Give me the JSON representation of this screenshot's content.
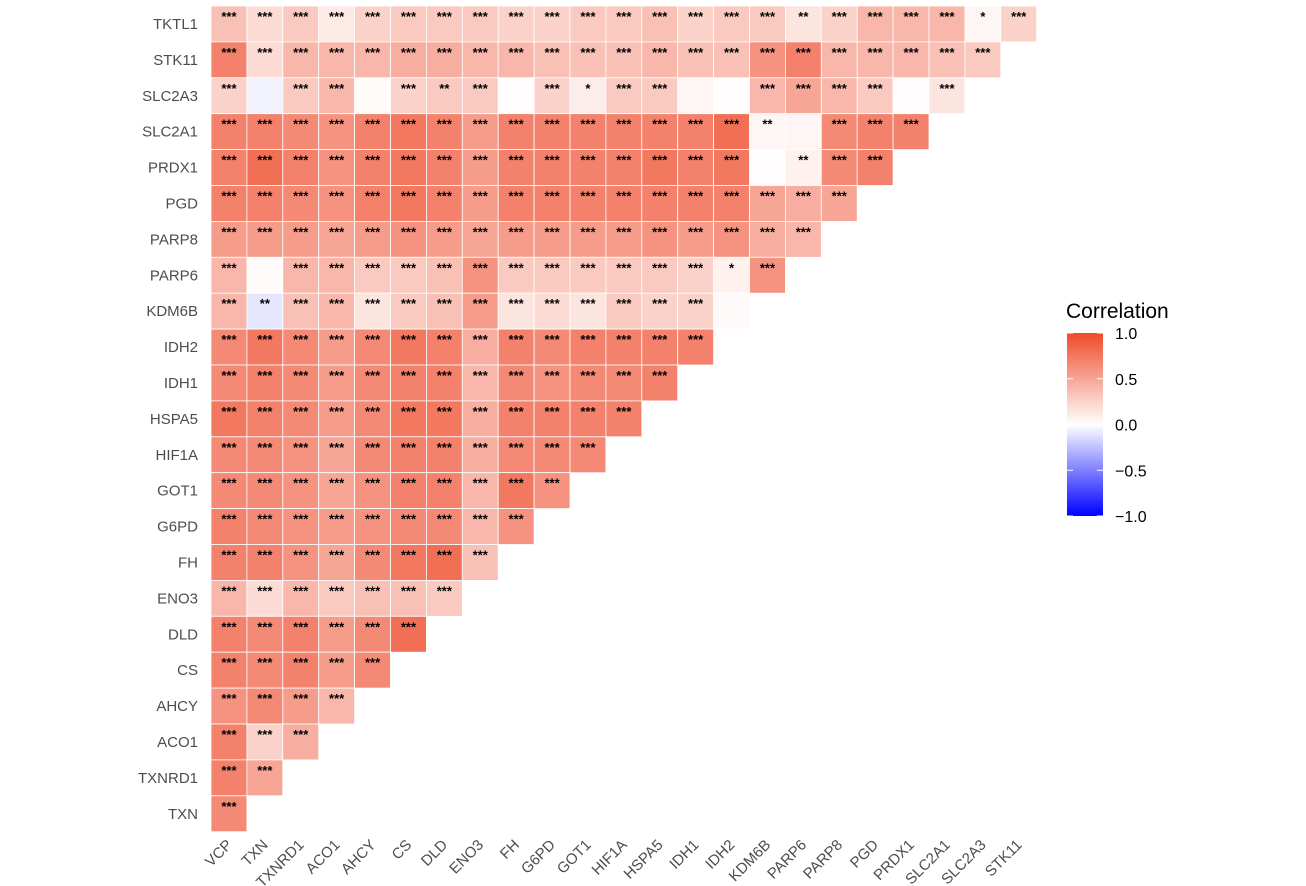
{
  "chart_data": {
    "type": "heatmap",
    "title": "",
    "xlabel": "",
    "ylabel": "",
    "x_categories": [
      "VCP",
      "TXN",
      "TXNRD1",
      "ACO1",
      "AHCY",
      "CS",
      "DLD",
      "ENO3",
      "FH",
      "G6PD",
      "GOT1",
      "HIF1A",
      "HSPA5",
      "IDH1",
      "IDH2",
      "KDM6B",
      "PARP6",
      "PARP8",
      "PGD",
      "PRDX1",
      "SLC2A1",
      "SLC2A3",
      "STK11"
    ],
    "y_categories": [
      "TKTL1",
      "STK11",
      "SLC2A3",
      "SLC2A1",
      "PRDX1",
      "PGD",
      "PARP8",
      "PARP6",
      "KDM6B",
      "IDH2",
      "IDH1",
      "HSPA5",
      "HIF1A",
      "GOT1",
      "G6PD",
      "FH",
      "ENO3",
      "DLD",
      "CS",
      "AHCY",
      "ACO1",
      "TXNRD1",
      "TXN"
    ],
    "values": [
      [
        0.35,
        0.2,
        0.3,
        0.12,
        0.25,
        0.3,
        0.3,
        0.3,
        0.25,
        0.25,
        0.3,
        0.3,
        0.35,
        0.25,
        0.3,
        0.3,
        0.15,
        0.25,
        0.4,
        0.4,
        0.4,
        0.05,
        0.25
      ],
      [
        0.7,
        0.2,
        0.4,
        0.4,
        0.4,
        0.45,
        0.45,
        0.4,
        0.4,
        0.35,
        0.35,
        0.35,
        0.4,
        0.35,
        0.35,
        0.6,
        0.7,
        0.4,
        0.4,
        0.4,
        0.35,
        0.3
      ],
      [
        0.25,
        -0.05,
        0.3,
        0.4,
        0.02,
        0.25,
        0.3,
        0.3,
        0.01,
        0.25,
        0.1,
        0.3,
        0.3,
        0.05,
        0.01,
        0.4,
        0.5,
        0.4,
        0.3,
        0.01,
        0.15
      ],
      [
        0.7,
        0.7,
        0.65,
        0.6,
        0.7,
        0.75,
        0.7,
        0.55,
        0.7,
        0.7,
        0.7,
        0.7,
        0.7,
        0.7,
        0.8,
        0.05,
        0.05,
        0.65,
        0.7,
        0.7
      ],
      [
        0.7,
        0.8,
        0.7,
        0.6,
        0.7,
        0.75,
        0.7,
        0.55,
        0.7,
        0.7,
        0.7,
        0.7,
        0.75,
        0.7,
        0.75,
        0.01,
        0.08,
        0.65,
        0.7
      ],
      [
        0.7,
        0.7,
        0.65,
        0.6,
        0.7,
        0.75,
        0.7,
        0.55,
        0.7,
        0.7,
        0.7,
        0.7,
        0.7,
        0.7,
        0.7,
        0.5,
        0.45,
        0.5
      ],
      [
        0.55,
        0.55,
        0.55,
        0.5,
        0.55,
        0.6,
        0.55,
        0.5,
        0.55,
        0.55,
        0.55,
        0.55,
        0.6,
        0.55,
        0.6,
        0.45,
        0.4
      ],
      [
        0.4,
        0.02,
        0.4,
        0.4,
        0.3,
        0.3,
        0.35,
        0.6,
        0.3,
        0.3,
        0.3,
        0.3,
        0.3,
        0.25,
        0.08,
        0.6
      ],
      [
        0.4,
        -0.1,
        0.35,
        0.4,
        0.15,
        0.3,
        0.35,
        0.55,
        0.15,
        0.2,
        0.15,
        0.3,
        0.25,
        0.25,
        0.03
      ],
      [
        0.65,
        0.75,
        0.65,
        0.55,
        0.65,
        0.75,
        0.7,
        0.45,
        0.7,
        0.65,
        0.7,
        0.7,
        0.7,
        0.7
      ],
      [
        0.65,
        0.7,
        0.65,
        0.55,
        0.65,
        0.7,
        0.7,
        0.4,
        0.65,
        0.6,
        0.65,
        0.65,
        0.7
      ],
      [
        0.75,
        0.7,
        0.65,
        0.55,
        0.65,
        0.75,
        0.75,
        0.45,
        0.7,
        0.7,
        0.7,
        0.7
      ],
      [
        0.65,
        0.65,
        0.6,
        0.5,
        0.65,
        0.7,
        0.7,
        0.45,
        0.65,
        0.65,
        0.65
      ],
      [
        0.65,
        0.65,
        0.6,
        0.5,
        0.6,
        0.7,
        0.7,
        0.4,
        0.75,
        0.6
      ],
      [
        0.7,
        0.65,
        0.6,
        0.55,
        0.6,
        0.65,
        0.65,
        0.4,
        0.6
      ],
      [
        0.7,
        0.7,
        0.6,
        0.5,
        0.65,
        0.75,
        0.8,
        0.35
      ],
      [
        0.4,
        0.2,
        0.4,
        0.3,
        0.35,
        0.35,
        0.3
      ],
      [
        0.7,
        0.65,
        0.7,
        0.55,
        0.65,
        0.8
      ],
      [
        0.7,
        0.65,
        0.7,
        0.55,
        0.65
      ],
      [
        0.6,
        0.65,
        0.55,
        0.4
      ],
      [
        0.7,
        0.25,
        0.45
      ],
      [
        0.7,
        0.5
      ],
      [
        0.65
      ]
    ],
    "significance": [
      [
        "***",
        "***",
        "***",
        "***",
        "***",
        "***",
        "***",
        "***",
        "***",
        "***",
        "***",
        "***",
        "***",
        "***",
        "***",
        "***",
        "**",
        "***",
        "***",
        "***",
        "***",
        "*",
        "***"
      ],
      [
        "***",
        "***",
        "***",
        "***",
        "***",
        "***",
        "***",
        "***",
        "***",
        "***",
        "***",
        "***",
        "***",
        "***",
        "***",
        "***",
        "***",
        "***",
        "***",
        "***",
        "***",
        "***"
      ],
      [
        "***",
        "",
        "***",
        "***",
        "",
        "***",
        "**",
        "***",
        "",
        "***",
        "*",
        "***",
        "***",
        "",
        "",
        "***",
        "***",
        "***",
        "***",
        "",
        "***"
      ],
      [
        "***",
        "***",
        "***",
        "***",
        "***",
        "***",
        "***",
        "***",
        "***",
        "***",
        "***",
        "***",
        "***",
        "***",
        "***",
        "**",
        "",
        "***",
        "***",
        "***"
      ],
      [
        "***",
        "***",
        "***",
        "***",
        "***",
        "***",
        "***",
        "***",
        "***",
        "***",
        "***",
        "***",
        "***",
        "***",
        "***",
        "",
        "**",
        "***",
        "***"
      ],
      [
        "***",
        "***",
        "***",
        "***",
        "***",
        "***",
        "***",
        "***",
        "***",
        "***",
        "***",
        "***",
        "***",
        "***",
        "***",
        "***",
        "***",
        "***"
      ],
      [
        "***",
        "***",
        "***",
        "***",
        "***",
        "***",
        "***",
        "***",
        "***",
        "***",
        "***",
        "***",
        "***",
        "***",
        "***",
        "***",
        "***"
      ],
      [
        "***",
        "",
        "***",
        "***",
        "***",
        "***",
        "***",
        "***",
        "***",
        "***",
        "***",
        "***",
        "***",
        "***",
        "*",
        "***"
      ],
      [
        "***",
        "**",
        "***",
        "***",
        "***",
        "***",
        "***",
        "***",
        "***",
        "***",
        "***",
        "***",
        "***",
        "***",
        ""
      ],
      [
        "***",
        "***",
        "***",
        "***",
        "***",
        "***",
        "***",
        "***",
        "***",
        "***",
        "***",
        "***",
        "***",
        "***"
      ],
      [
        "***",
        "***",
        "***",
        "***",
        "***",
        "***",
        "***",
        "***",
        "***",
        "***",
        "***",
        "***",
        "***"
      ],
      [
        "***",
        "***",
        "***",
        "***",
        "***",
        "***",
        "***",
        "***",
        "***",
        "***",
        "***",
        "***"
      ],
      [
        "***",
        "***",
        "***",
        "***",
        "***",
        "***",
        "***",
        "***",
        "***",
        "***",
        "***"
      ],
      [
        "***",
        "***",
        "***",
        "***",
        "***",
        "***",
        "***",
        "***",
        "***",
        "***"
      ],
      [
        "***",
        "***",
        "***",
        "***",
        "***",
        "***",
        "***",
        "***",
        "***"
      ],
      [
        "***",
        "***",
        "***",
        "***",
        "***",
        "***",
        "***",
        "***"
      ],
      [
        "***",
        "***",
        "***",
        "***",
        "***",
        "***",
        "***"
      ],
      [
        "***",
        "***",
        "***",
        "***",
        "***",
        "***"
      ],
      [
        "***",
        "***",
        "***",
        "***",
        "***"
      ],
      [
        "***",
        "***",
        "***",
        "***"
      ],
      [
        "***",
        "***",
        "***"
      ],
      [
        "***",
        "***"
      ],
      [
        "***"
      ]
    ],
    "color_scale": {
      "min": -1.0,
      "max": 1.0,
      "low_color": "#0000ff",
      "mid_color": "#ffffff",
      "high_color": "#ee4b2b"
    },
    "legend": {
      "title": "Correlation",
      "ticks": [
        "1.0",
        "0.5",
        "0.0",
        "−0.5",
        "−1.0"
      ],
      "tick_values": [
        1.0,
        0.5,
        0.0,
        -0.5,
        -1.0
      ],
      "placement": "right"
    }
  }
}
